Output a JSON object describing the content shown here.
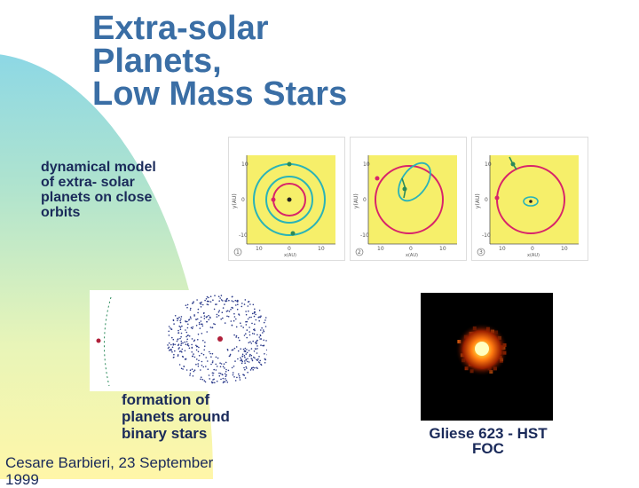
{
  "slide": {
    "title_lines": [
      "Extra-solar",
      "Planets,",
      "Low Mass Stars"
    ],
    "dynamical_caption_lines": [
      "dynamical model",
      "of extra- solar",
      "planets on close",
      "orbits"
    ],
    "binary_caption_lines": [
      "formation of",
      "planets around",
      "binary stars"
    ],
    "gliese_caption_lines": [
      "Gliese 623 - HST",
      "FOC"
    ],
    "credit_lines": [
      "Cesare Barbieri, 23 September",
      "1999"
    ],
    "panels": [
      {
        "number": "1",
        "y_label": "y(AU)",
        "x_label": "x(AU)",
        "y_ticks": [
          "10",
          "0",
          "-10"
        ],
        "x_ticks": [
          "10",
          "0",
          "10"
        ]
      },
      {
        "number": "2",
        "y_label": "y(AU)",
        "x_label": "x(AU)",
        "y_ticks": [
          "10",
          "0",
          "-10"
        ],
        "x_ticks": [
          "10",
          "0",
          "10"
        ]
      },
      {
        "number": "3",
        "y_label": "y(AU)",
        "x_label": "x(AU)",
        "y_ticks": [
          "10",
          "0",
          "-10"
        ],
        "x_ticks": [
          "10",
          "0",
          "10"
        ]
      }
    ],
    "colors": {
      "title": "#3a6ea5",
      "text": "#1a2a5a",
      "panel_background": "#f6ef6a",
      "orbit_teal": "#2ab3b8",
      "orbit_magenta": "#d8246a",
      "particles": "#2b3a8a"
    }
  }
}
